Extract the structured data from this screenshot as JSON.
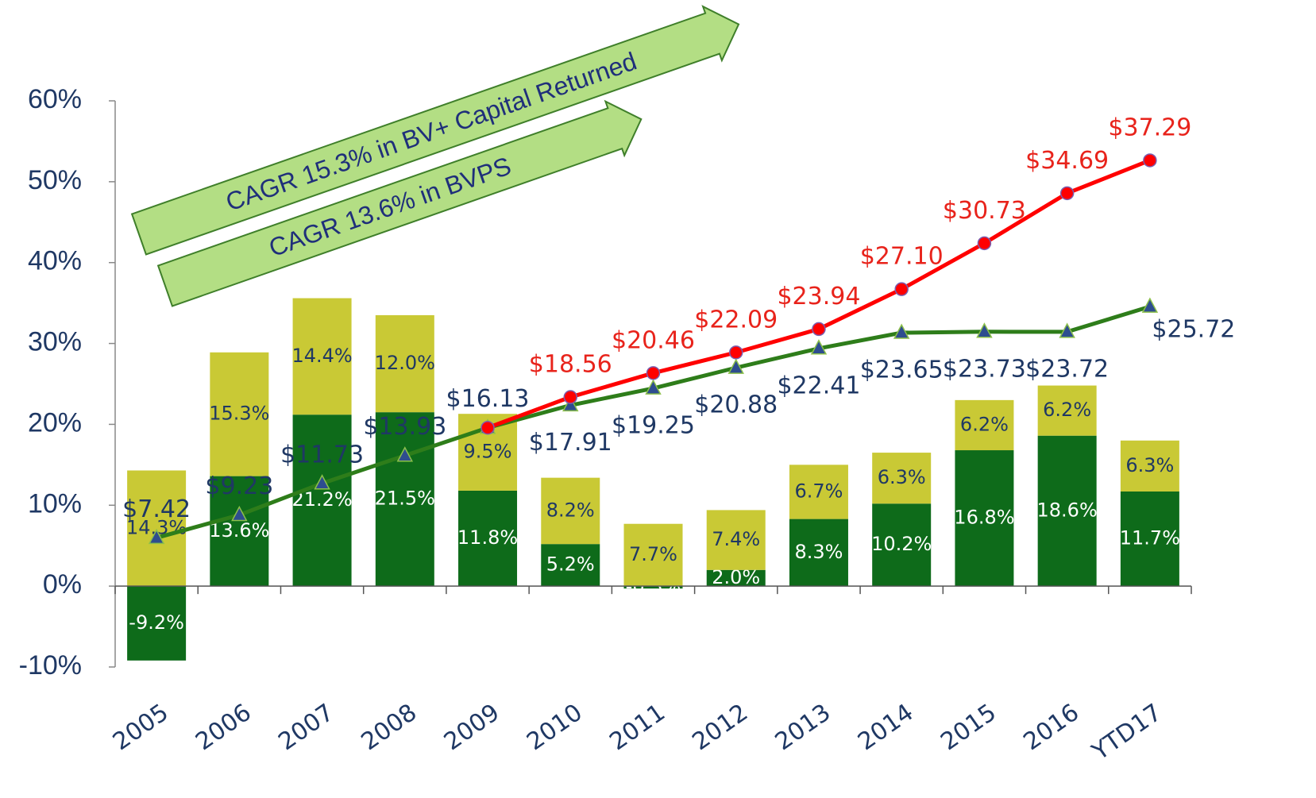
{
  "chart_data": {
    "type": "bar",
    "categories": [
      "2005",
      "2006",
      "2007",
      "2008",
      "2009",
      "2010",
      "2011",
      "2012",
      "2013",
      "2014",
      "2015",
      "2016",
      "YTD17"
    ],
    "series": [
      {
        "color": "#0e6b1a",
        "values": [
          -9.2,
          13.6,
          21.2,
          21.5,
          11.8,
          5.2,
          -0.3,
          2.0,
          8.3,
          10.2,
          16.8,
          18.6,
          11.7
        ],
        "value_labels": [
          "-9.2%",
          "13.6%",
          "21.2%",
          "21.5%",
          "11.8%",
          "5.2%",
          "-0.3%",
          "2.0%",
          "8.3%",
          "10.2%",
          "16.8%",
          "18.6%",
          "11.7%"
        ]
      },
      {
        "color": "#c9c935",
        "values": [
          14.3,
          15.3,
          14.4,
          12.0,
          9.5,
          8.2,
          7.7,
          7.4,
          6.7,
          6.3,
          6.2,
          6.2,
          6.3
        ],
        "value_labels": [
          "14.3%",
          "15.3%",
          "14.4%",
          "12.0%",
          "9.5%",
          "8.2%",
          "7.7%",
          "7.4%",
          "6.7%",
          "6.3%",
          "6.2%",
          "6.2%",
          "6.3%"
        ]
      },
      {
        "type": "line",
        "axis": "y2",
        "color": "#2e7d1a",
        "values": [
          7.42,
          9.23,
          11.73,
          13.93,
          16.13,
          17.91,
          19.25,
          20.88,
          22.41,
          23.65,
          23.73,
          23.72,
          25.72
        ],
        "value_labels": [
          "$7.42",
          "$9.23",
          "$11.73",
          "$13.93",
          "$16.13",
          "$17.91",
          "$19.25",
          "$20.88",
          "$22.41",
          "$23.65",
          "$23.73",
          "$23.72",
          "$25.72"
        ]
      },
      {
        "type": "line",
        "axis": "y2",
        "color": "#ff0000",
        "values": [
          null,
          null,
          null,
          null,
          16.13,
          18.56,
          20.46,
          22.09,
          23.94,
          27.1,
          30.73,
          34.69,
          37.29
        ],
        "value_labels": [
          null,
          null,
          null,
          null,
          null,
          "$18.56",
          "$20.46",
          "$22.09",
          "$23.94",
          "$27.10",
          "$30.73",
          "$34.69",
          "$37.29"
        ]
      }
    ],
    "ylim": [
      -10,
      60
    ],
    "yticks": [
      {
        "value": -10,
        "label": "-10%"
      },
      {
        "value": 0,
        "label": "0%"
      },
      {
        "value": 10,
        "label": "10%"
      },
      {
        "value": 20,
        "label": "20%"
      },
      {
        "value": 30,
        "label": "30%"
      },
      {
        "value": 40,
        "label": "40%"
      },
      {
        "value": 50,
        "label": "50%"
      },
      {
        "value": 60,
        "label": "60%"
      }
    ],
    "y2lim": [
      -2.8,
      42
    ],
    "annotations": [
      "CAGR 15.3% in BV+ Capital Returned",
      "CAGR 13.6% in BVPS"
    ]
  }
}
